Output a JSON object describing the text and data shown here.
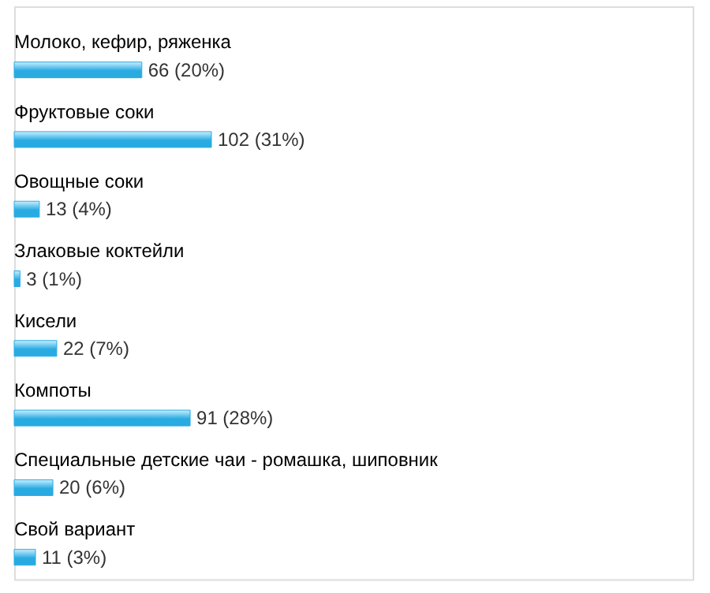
{
  "chart_data": {
    "type": "bar",
    "orientation": "horizontal",
    "categories": [
      "Молоко, кефир, ряженка",
      "Фруктовые соки",
      "Овощные соки",
      "Злаковые коктейли",
      "Кисели",
      "Компоты",
      "Специальные детские чаи - ромашка, шиповник",
      "Свой вариант"
    ],
    "values": [
      66,
      102,
      13,
      3,
      22,
      91,
      20,
      11
    ],
    "color": "#29abe2",
    "value_labels": [
      "66 (20%)",
      "102 (31%)",
      "13 (4%)",
      "3 (1%)",
      "22 (7%)",
      "91 (28%)",
      "20 (6%)",
      "11 (3%)"
    ]
  }
}
